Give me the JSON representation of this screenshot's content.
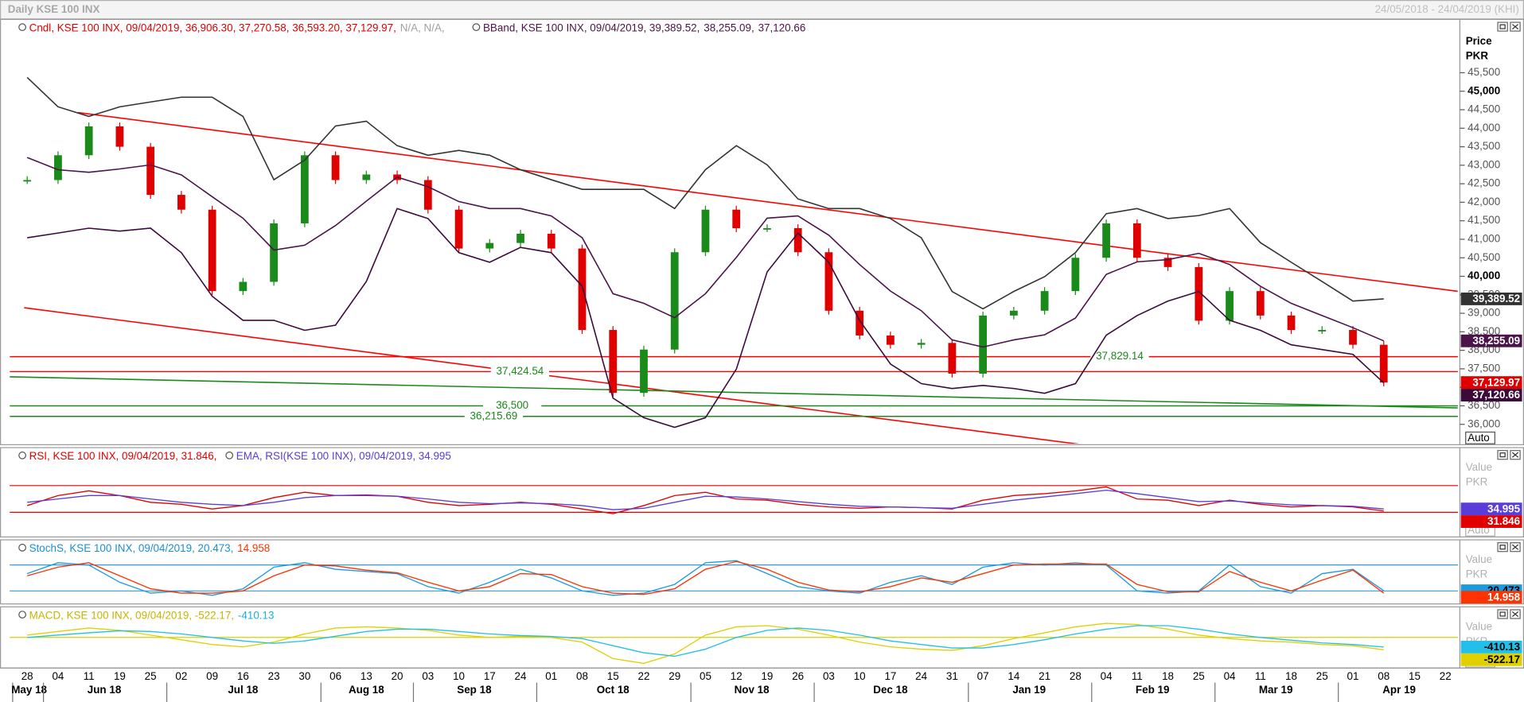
{
  "header": {
    "title": "Daily KSE 100 INX",
    "range": "24/05/2018 - 24/04/2019 (KHI)"
  },
  "chart_data": [
    {
      "type": "candlestick",
      "legend": [
        [
          {
            "text": "Cndl, KSE 100 INX, 09/04/2019, 36,906.30, 37,270.58, 36,593.20, 37,129.97,",
            "color": "#e00000"
          },
          {
            "text": "N/A, N/A,",
            "color": "#a0a0a0"
          }
        ],
        [
          {
            "text": "BBand, KSE 100 INX, 09/04/2019, 39,389.52,",
            "color": "#4b1349"
          },
          {
            "text": "38,255.09,",
            "color": "#4b1349"
          },
          {
            "text": "37,120.66",
            "color": "#4b1349"
          }
        ]
      ],
      "y_axis_label": [
        "Price",
        "PKR"
      ],
      "auto": "Auto",
      "categories": [
        "28",
        "04",
        "11",
        "19",
        "25",
        "02",
        "09",
        "16",
        "23",
        "30",
        "06",
        "13",
        "20",
        "03",
        "10",
        "17",
        "24",
        "01",
        "08",
        "15",
        "22",
        "29",
        "05",
        "12",
        "19",
        "26",
        "03",
        "10",
        "17",
        "24",
        "31",
        "07",
        "14",
        "21",
        "28",
        "04",
        "11",
        "18",
        "25",
        "04",
        "11",
        "18",
        "25",
        "01",
        "08",
        "15",
        "22"
      ],
      "months": [
        {
          "label": "May 18",
          "from": 0,
          "to": 0
        },
        {
          "label": "Jun 18",
          "from": 1,
          "to": 4
        },
        {
          "label": "Jul 18",
          "from": 5,
          "to": 9
        },
        {
          "label": "Aug 18",
          "from": 10,
          "to": 12
        },
        {
          "label": "Sep 18",
          "from": 13,
          "to": 16
        },
        {
          "label": "Oct 18",
          "from": 17,
          "to": 21
        },
        {
          "label": "Nov 18",
          "from": 22,
          "to": 25
        },
        {
          "label": "Dec 18",
          "from": 26,
          "to": 30
        },
        {
          "label": "Jan 19",
          "from": 31,
          "to": 34
        },
        {
          "label": "Feb 19",
          "from": 35,
          "to": 38
        },
        {
          "label": "Mar 19",
          "from": 39,
          "to": 42
        },
        {
          "label": "Apr 19",
          "from": 43,
          "to": 46
        }
      ],
      "up_color": "#1a8a1a",
      "down_color": "#e00000",
      "series": [
        {
          "name": "Cndl",
          "kind": "candle",
          "color": "#e00000",
          "tag": "37,129.97",
          "tag_text_color": "#ffffff",
          "values": [
            42600,
            43270,
            44050,
            43500,
            42200,
            41800,
            39600,
            39850,
            41430,
            43270,
            42600,
            42750,
            42600,
            41800,
            40750,
            40900,
            41150,
            40750,
            38550,
            36850,
            38020,
            40650,
            41800,
            41300,
            41300,
            40650,
            39070,
            38400,
            38150,
            38200,
            37370,
            38940,
            39070,
            39600,
            40500,
            41430,
            40500,
            40250,
            38800,
            39600,
            38940,
            38550,
            38550,
            38150,
            37129.97,
            null,
            null
          ]
        },
        {
          "name": "BBand upper",
          "kind": "line",
          "color": "#333333",
          "tag": "39,389.52",
          "tag_text_color": "#ffffff",
          "values": [
            45370,
            44580,
            44320,
            44580,
            44710,
            44840,
            44840,
            44320,
            42610,
            43140,
            44060,
            44190,
            43530,
            43270,
            43400,
            43270,
            42880,
            42610,
            42350,
            42350,
            42350,
            41830,
            42880,
            43530,
            43010,
            42090,
            41830,
            41830,
            41560,
            41040,
            39590,
            39120,
            39590,
            39990,
            40640,
            41690,
            41830,
            41560,
            41640,
            41830,
            40910,
            40380,
            39860,
            39330,
            39389.52,
            null,
            null
          ]
        },
        {
          "name": "BBand middle",
          "kind": "line",
          "color": "#4b1349",
          "tag": "38,255.09",
          "tag_text_color": "#ffffff",
          "values": [
            43210,
            42880,
            42810,
            42900,
            43010,
            42740,
            42150,
            41570,
            40710,
            40840,
            41370,
            42030,
            42680,
            42420,
            42020,
            41830,
            41830,
            41630,
            41040,
            39530,
            39270,
            38880,
            39530,
            40510,
            41570,
            41630,
            41110,
            40320,
            39600,
            39070,
            38280,
            38090,
            38280,
            38420,
            38870,
            40050,
            40390,
            40450,
            40620,
            40320,
            39730,
            39270,
            38940,
            38610,
            38255.09,
            null,
            null
          ]
        },
        {
          "name": "BBand lower",
          "kind": "line",
          "color": "#3b0a3b",
          "tag": "37,120.66",
          "tag_text_color": "#ffffff",
          "values": [
            41040,
            41170,
            41300,
            41220,
            41300,
            40640,
            39460,
            38810,
            38810,
            38540,
            38680,
            39860,
            41830,
            41560,
            40640,
            40380,
            40780,
            40640,
            39730,
            36710,
            36180,
            35920,
            36180,
            37490,
            40120,
            41170,
            40380,
            38810,
            37630,
            37100,
            36970,
            37050,
            36970,
            36840,
            37100,
            38410,
            38940,
            39330,
            39590,
            38810,
            38540,
            38150,
            38020,
            37890,
            37120.66,
            null,
            null
          ]
        }
      ],
      "hlines": [
        {
          "value": 37829.14,
          "label": "37,829.14",
          "color": "#ff0000",
          "label_color": "#1a8a1a"
        },
        {
          "value": 37424.54,
          "label": "37,424.54",
          "color": "#ff0000",
          "label_color": "#1a8a1a"
        },
        {
          "value": 36500,
          "label": "36,500",
          "color": "#1a8a1a",
          "label_color": "#1a8a1a"
        },
        {
          "value": 36215.69,
          "label": "36,215.69",
          "color": "#1a8a1a",
          "label_color": "#1a8a1a"
        }
      ],
      "trendlines": [
        {
          "color": "#ff0000",
          "from": [
            1.64,
            44424
          ],
          "to": [
            46.4,
            39594
          ]
        },
        {
          "color": "#ff0000",
          "from": [
            -0.1,
            39150
          ],
          "to": [
            34.27,
            35446
          ]
        },
        {
          "color": "#1a8a1a",
          "from": [
            -0.57,
            37284
          ],
          "to": [
            46.4,
            36444
          ]
        }
      ],
      "ylim": [
        35450,
        46940
      ],
      "yticks": [
        {
          "value": 45500,
          "label": "45,500"
        },
        {
          "value": 45000,
          "label": "45,000"
        },
        {
          "value": 44500,
          "label": "44,500"
        },
        {
          "value": 44000,
          "label": "44,000"
        },
        {
          "value": 43500,
          "label": "43,500"
        },
        {
          "value": 43000,
          "label": "43,000"
        },
        {
          "value": 42500,
          "label": "42,500"
        },
        {
          "value": 42000,
          "label": "42,000"
        },
        {
          "value": 41500,
          "label": "41,500"
        },
        {
          "value": 41000,
          "label": "41,000"
        },
        {
          "value": 40500,
          "label": "40,500"
        },
        {
          "value": 40000,
          "label": "40,000"
        },
        {
          "value": 39500,
          "label": "39,500"
        },
        {
          "value": 39000,
          "label": "39,000"
        },
        {
          "value": 38500,
          "label": "38,500"
        },
        {
          "value": 38000,
          "label": "38,000"
        },
        {
          "value": 37500,
          "label": "37,500"
        },
        {
          "value": 37000,
          "label": "37,000"
        },
        {
          "value": 36500,
          "label": "36,500"
        },
        {
          "value": 36000,
          "label": "36,000"
        }
      ],
      "bold_ticks": [
        45000,
        40000
      ]
    },
    {
      "type": "line",
      "legend": [
        [
          {
            "text": "RSI, KSE 100 INX, 09/04/2019, 31.846,",
            "color": "#e00000"
          }
        ],
        [
          {
            "text": "EMA, RSI(KSE 100 INX), 09/04/2019, 34.995",
            "color": "#5a3cd8"
          }
        ]
      ],
      "y_axis_label": [
        "Value",
        "PKR"
      ],
      "auto": "Auto",
      "levels": [
        30,
        70
      ],
      "level_color": "#e00000",
      "ylim": [
        -7,
        127
      ],
      "series": [
        {
          "name": "RSI",
          "color": "#e00000",
          "tag": "31.846",
          "tag_text_color": "#ffffff",
          "values": [
            40,
            55,
            62,
            55,
            45,
            42,
            35,
            40,
            52,
            60,
            55,
            56,
            54,
            45,
            40,
            42,
            45,
            42,
            35,
            28,
            40,
            55,
            60,
            50,
            48,
            42,
            38,
            36,
            38,
            37,
            35,
            48,
            55,
            58,
            62,
            68,
            50,
            48,
            40,
            48,
            42,
            38,
            40,
            38,
            31.846,
            null,
            null
          ]
        },
        {
          "name": "EMA",
          "color": "#5a3cd8",
          "tag": "34.995",
          "tag_text_color": "#ffffff",
          "values": [
            45,
            50,
            55,
            55,
            50,
            45,
            42,
            40,
            45,
            52,
            55,
            55,
            54,
            50,
            45,
            43,
            44,
            43,
            40,
            34,
            36,
            45,
            54,
            53,
            50,
            46,
            42,
            39,
            38,
            37,
            36,
            42,
            48,
            53,
            58,
            63,
            58,
            52,
            46,
            47,
            44,
            41,
            40,
            39,
            34.995,
            null,
            null
          ]
        }
      ]
    },
    {
      "type": "line",
      "legend": [
        [
          {
            "text": "StochS, KSE 100 INX, 09/04/2019, 20.473,",
            "color": "#1a8fd8"
          },
          {
            "text": "14.958",
            "color": "#ff3300"
          }
        ]
      ],
      "y_axis_label": [
        "Value",
        "PKR"
      ],
      "auto": "Auto",
      "levels": [
        20,
        80
      ],
      "level_color": "#3399dd",
      "ylim": [
        -10,
        138
      ],
      "series": [
        {
          "name": "%K",
          "color": "#1a9be0",
          "tag": "20.473",
          "tag_text_color": "#000000",
          "values": [
            60,
            85,
            80,
            40,
            15,
            20,
            10,
            25,
            75,
            85,
            70,
            65,
            60,
            30,
            15,
            40,
            70,
            50,
            20,
            10,
            15,
            35,
            85,
            90,
            60,
            30,
            20,
            15,
            40,
            55,
            35,
            75,
            85,
            80,
            85,
            80,
            20,
            15,
            20,
            80,
            30,
            15,
            60,
            70,
            20.473,
            null,
            null
          ]
        },
        {
          "name": "%D",
          "color": "#ff3300",
          "tag": "14.958",
          "tag_text_color": "#ffffff",
          "values": [
            55,
            75,
            85,
            55,
            25,
            15,
            15,
            20,
            55,
            80,
            78,
            68,
            62,
            40,
            20,
            30,
            60,
            58,
            30,
            15,
            12,
            25,
            70,
            88,
            70,
            40,
            22,
            18,
            30,
            50,
            40,
            60,
            80,
            82,
            82,
            82,
            35,
            18,
            18,
            65,
            40,
            20,
            45,
            68,
            14.958,
            null,
            null
          ]
        }
      ]
    },
    {
      "type": "line",
      "legend": [
        [
          {
            "text": "MACD, KSE 100 INX, 09/04/2019, -522.17,",
            "color": "#c8b400"
          },
          {
            "text": "-410.13",
            "color": "#1ab0e0"
          }
        ]
      ],
      "y_axis_label": [
        "Value",
        "PKR"
      ],
      "auto": "Auto",
      "levels": [
        0
      ],
      "level_color": "#d8d000",
      "ylim": [
        -1300,
        1300
      ],
      "series": [
        {
          "name": "MACD",
          "color": "#e0d000",
          "tag": "-522.17",
          "tag_text_color": "#000000",
          "values": [
            100,
            250,
            400,
            300,
            100,
            -100,
            -300,
            -400,
            -200,
            150,
            400,
            450,
            400,
            300,
            100,
            0,
            50,
            0,
            -200,
            -900,
            -1100,
            -700,
            100,
            450,
            500,
            350,
            100,
            -200,
            -400,
            -500,
            -550,
            -350,
            -50,
            200,
            450,
            600,
            550,
            350,
            100,
            -50,
            -150,
            -200,
            -300,
            -350,
            -522.17,
            null,
            null
          ]
        },
        {
          "name": "Signal",
          "color": "#22c0e8",
          "tag": "-410.13",
          "tag_text_color": "#000000",
          "values": [
            0,
            100,
            200,
            280,
            250,
            150,
            0,
            -150,
            -250,
            -150,
            50,
            250,
            350,
            350,
            250,
            150,
            80,
            40,
            -50,
            -350,
            -650,
            -800,
            -500,
            0,
            300,
            400,
            300,
            100,
            -150,
            -300,
            -450,
            -450,
            -300,
            -100,
            150,
            350,
            500,
            500,
            350,
            150,
            0,
            -120,
            -230,
            -300,
            -410.13,
            null,
            null
          ]
        }
      ]
    }
  ]
}
